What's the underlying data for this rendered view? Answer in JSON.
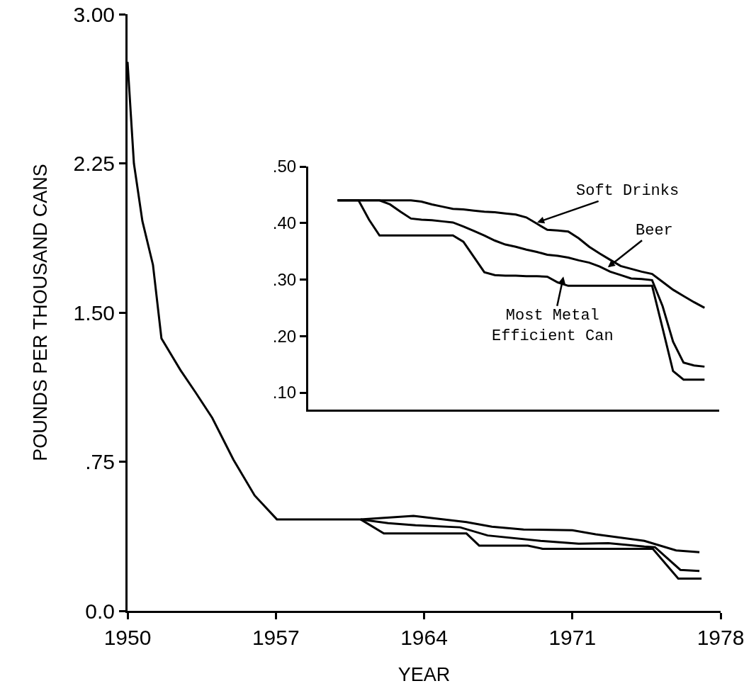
{
  "chart_data": [
    {
      "type": "line",
      "xlabel": "YEAR",
      "ylabel": "POUNDS PER THOUSAND CANS",
      "xlim": [
        1950,
        1978
      ],
      "xticks": [
        1950,
        1957,
        1964,
        1971,
        1978
      ],
      "ylim": [
        0,
        3
      ],
      "yticks": [
        {
          "value": 0,
          "label": "0.0"
        },
        {
          "value": 0.75,
          "label": ".75"
        },
        {
          "value": 1.5,
          "label": "1.50"
        },
        {
          "value": 2.25,
          "label": "2.25"
        },
        {
          "value": 3,
          "label": "3.00"
        }
      ],
      "grid": false,
      "series": [
        {
          "color": "#000000",
          "x": [
            1950,
            1950.3,
            1950.7,
            1951.2,
            1951.6,
            1952.5,
            1953.2,
            1954,
            1955,
            1956,
            1957.05,
            1961,
            1963.5,
            1966,
            1967.2,
            1968.7,
            1971,
            1972.1,
            1974.4,
            1975.9,
            1977
          ],
          "values": [
            2.76,
            2.25,
            1.96,
            1.74,
            1.37,
            1.21,
            1.1,
            0.97,
            0.76,
            0.58,
            0.46,
            0.46,
            0.477,
            0.446,
            0.423,
            0.409,
            0.405,
            0.385,
            0.352,
            0.304,
            0.295
          ]
        },
        {
          "color": "#000000",
          "x": [
            1961,
            1962.3,
            1963.6,
            1965.7,
            1967,
            1969.5,
            1971.3,
            1972.7,
            1974.4,
            1974.9,
            1976.1,
            1977
          ],
          "values": [
            0.46,
            0.441,
            0.43,
            0.42,
            0.379,
            0.352,
            0.338,
            0.34,
            0.323,
            0.32,
            0.206,
            0.2
          ]
        },
        {
          "color": "#000000",
          "x": [
            1961,
            1962.1,
            1966,
            1966.6,
            1968.9,
            1969.6,
            1974.8,
            1976,
            1977.1
          ],
          "values": [
            0.46,
            0.389,
            0.389,
            0.328,
            0.328,
            0.312,
            0.312,
            0.162,
            0.162
          ]
        }
      ]
    },
    {
      "type": "line",
      "categories": [
        null,
        null,
        null,
        null,
        null,
        null,
        null,
        null,
        null,
        null,
        null,
        null,
        null,
        null,
        null,
        null,
        null,
        null,
        null,
        null,
        null,
        null,
        null,
        null,
        null,
        null,
        null,
        null,
        null,
        null,
        null,
        null,
        null,
        null,
        null,
        null
      ],
      "ylim": [
        0.07,
        0.5
      ],
      "yticks": [
        {
          "value": 0.1,
          "label": ".10"
        },
        {
          "value": 0.2,
          "label": ".20"
        },
        {
          "value": 0.3,
          "label": ".30"
        },
        {
          "value": 0.4,
          "label": ".40"
        },
        {
          "value": 0.5,
          "label": ".50"
        }
      ],
      "tick_labels": "y",
      "grid": false,
      "annotations": [
        "Soft Drinks",
        "Beer",
        "Most Metal\nEfficient Can"
      ],
      "series": [
        {
          "color": "#000000",
          "values": [
            0.44,
            0.44,
            0.44,
            0.44,
            0.44,
            0.44,
            0.44,
            0.44,
            0.438,
            0.433,
            0.429,
            0.425,
            0.424,
            0.422,
            0.42,
            0.419,
            0.417,
            0.415,
            0.41,
            0.399,
            0.388,
            0.387,
            0.385,
            0.373,
            0.358,
            0.346,
            0.335,
            0.324,
            0.319,
            0.314,
            0.31,
            0.296,
            0.282,
            0.271,
            0.26,
            0.25
          ]
        },
        {
          "color": "#000000",
          "values": [
            0.44,
            0.44,
            0.44,
            0.44,
            0.44,
            0.433,
            0.42,
            0.408,
            0.406,
            0.405,
            0.403,
            0.401,
            0.394,
            0.386,
            0.378,
            0.369,
            0.362,
            0.358,
            0.353,
            0.349,
            0.344,
            0.342,
            0.339,
            0.334,
            0.33,
            0.323,
            0.314,
            0.308,
            0.302,
            0.301,
            0.299,
            0.253,
            0.19,
            0.153,
            0.148,
            0.146
          ]
        },
        {
          "color": "#000000",
          "values": [
            0.44,
            0.44,
            0.44,
            0.406,
            0.378,
            0.378,
            0.378,
            0.378,
            0.378,
            0.378,
            0.378,
            0.378,
            0.367,
            0.34,
            0.313,
            0.308,
            0.307,
            0.307,
            0.306,
            0.306,
            0.305,
            0.295,
            0.289,
            0.289,
            0.289,
            0.289,
            0.289,
            0.289,
            0.289,
            0.289,
            0.289,
            0.214,
            0.138,
            0.123,
            0.123,
            0.123
          ]
        }
      ]
    }
  ]
}
